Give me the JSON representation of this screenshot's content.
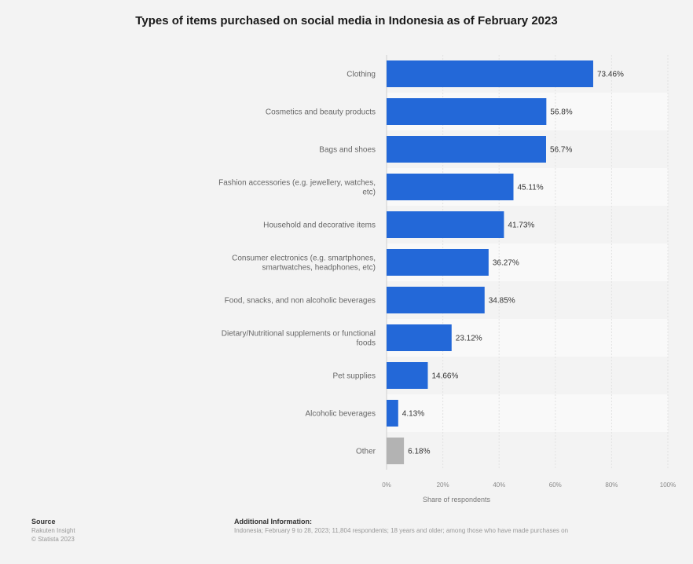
{
  "chart_data": {
    "type": "bar",
    "orientation": "horizontal",
    "title": "Types of items purchased on social media in Indonesia as of February 2023",
    "categories": [
      [
        "Clothing"
      ],
      [
        "Cosmetics and beauty products"
      ],
      [
        "Bags and shoes"
      ],
      [
        "Fashion accessories (e.g. jewellery, watches,",
        "etc)"
      ],
      [
        "Household and decorative items"
      ],
      [
        "Consumer electronics (e.g. smartphones,",
        "smartwatches, headphones, etc)"
      ],
      [
        "Food, snacks, and non alcoholic beverages"
      ],
      [
        "Dietary/Nutritional supplements or functional",
        "foods"
      ],
      [
        "Pet supplies"
      ],
      [
        "Alcoholic beverages"
      ],
      [
        "Other"
      ]
    ],
    "values": [
      73.46,
      56.8,
      56.7,
      45.11,
      41.73,
      36.27,
      34.85,
      23.12,
      14.66,
      4.13,
      6.18
    ],
    "value_labels": [
      "73.46%",
      "56.8%",
      "56.7%",
      "45.11%",
      "41.73%",
      "36.27%",
      "34.85%",
      "23.12%",
      "14.66%",
      "4.13%",
      "6.18%"
    ],
    "bar_colors": [
      "#2368d8",
      "#2368d8",
      "#2368d8",
      "#2368d8",
      "#2368d8",
      "#2368d8",
      "#2368d8",
      "#2368d8",
      "#2368d8",
      "#2368d8",
      "#b3b3b3"
    ],
    "xlabel": "Share of respondents",
    "ylabel": "",
    "xlim": [
      0,
      100
    ],
    "xticks": [
      0,
      20,
      40,
      60,
      80,
      100
    ],
    "xtick_labels": [
      "0%",
      "20%",
      "40%",
      "60%",
      "80%",
      "100%"
    ],
    "grid": true,
    "legend": "none"
  },
  "footer": {
    "source_heading": "Source",
    "source_lines": [
      "Rakuten Insight",
      "© Statista 2023"
    ],
    "info_heading": "Additional Information:",
    "info_text": "Indonesia; February 9 to 28, 2023; 11,804 respondents; 18 years and older; among those who have made purchases on"
  }
}
